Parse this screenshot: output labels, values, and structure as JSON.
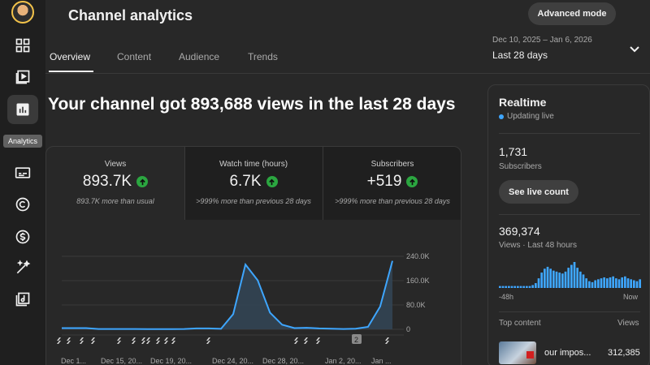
{
  "sidebar": {
    "tooltip": "Analytics",
    "items": [
      {
        "icon": "dashboard-icon"
      },
      {
        "icon": "content-icon"
      },
      {
        "icon": "analytics-icon",
        "active": true
      },
      {
        "icon": "subtitles-icon"
      },
      {
        "icon": "copyright-icon"
      },
      {
        "icon": "earn-icon"
      },
      {
        "icon": "customization-icon"
      },
      {
        "icon": "audio-library-icon"
      }
    ]
  },
  "header": {
    "title": "Channel analytics",
    "advanced_mode": "Advanced mode",
    "date_range": "Dec 10, 2025 – Jan 6, 2026",
    "date_label": "Last 28 days"
  },
  "tabs": [
    "Overview",
    "Content",
    "Audience",
    "Trends"
  ],
  "headline": "Your channel got 893,688 views in the last 28 days",
  "metrics": [
    {
      "label": "Views",
      "value": "893.7K",
      "note": "893.7K more than usual"
    },
    {
      "label": "Watch time (hours)",
      "value": "6.7K",
      "note": ">999% more than previous 28 days"
    },
    {
      "label": "Subscribers",
      "value": "+519",
      "note": ">999% more than previous 28 days"
    }
  ],
  "chart_data": {
    "type": "area",
    "x": [
      "Dec 10",
      "Dec 11",
      "Dec 12",
      "Dec 13",
      "Dec 14",
      "Dec 15",
      "Dec 16",
      "Dec 17",
      "Dec 18",
      "Dec 19",
      "Dec 20",
      "Dec 21",
      "Dec 22",
      "Dec 23",
      "Dec 24",
      "Dec 25",
      "Dec 26",
      "Dec 27",
      "Dec 28",
      "Dec 29",
      "Dec 30",
      "Dec 31",
      "Jan 1",
      "Jan 2",
      "Jan 3",
      "Jan 4",
      "Jan 5",
      "Jan 6"
    ],
    "values": [
      4000,
      4000,
      4000,
      1000,
      1000,
      1000,
      1000,
      500,
      500,
      500,
      1000,
      3000,
      3000,
      1500,
      50000,
      213000,
      161000,
      55000,
      15000,
      4000,
      5000,
      3000,
      2000,
      1000,
      2000,
      8000,
      75000,
      225000
    ],
    "x_tick_labels": [
      "Dec 1...",
      "Dec 15, 20...",
      "Dec 19, 20...",
      "Dec 24, 20...",
      "Dec 28, 20...",
      "Jan 2, 20...",
      "Jan ..."
    ],
    "y_tick_labels": [
      "240.0K",
      "160.0K",
      "80.0K",
      "0"
    ],
    "ylim": [
      0,
      240000
    ],
    "annotation_marker": "2",
    "line_color": "#3ea6ff"
  },
  "realtime": {
    "title": "Realtime",
    "status": "Updating live",
    "subscribers": "1,731",
    "subscribers_label": "Subscribers",
    "live_count_button": "See live count",
    "views": "369,374",
    "views_label": "Views · Last 48 hours",
    "axis_start": "-48h",
    "axis_end": "Now",
    "bars": [
      2,
      2,
      2,
      2,
      2,
      2,
      2,
      2,
      2,
      2,
      2,
      3,
      5,
      10,
      16,
      20,
      22,
      20,
      18,
      17,
      16,
      15,
      17,
      21,
      24,
      27,
      21,
      17,
      14,
      10,
      7,
      6,
      8,
      9,
      10,
      11,
      10,
      11,
      12,
      10,
      9,
      11,
      12,
      10,
      9,
      8,
      7,
      9
    ],
    "top_content_label": "Top content",
    "top_content_views_label": "Views",
    "top_content": {
      "title": "our impos...",
      "views": "312,385"
    }
  }
}
